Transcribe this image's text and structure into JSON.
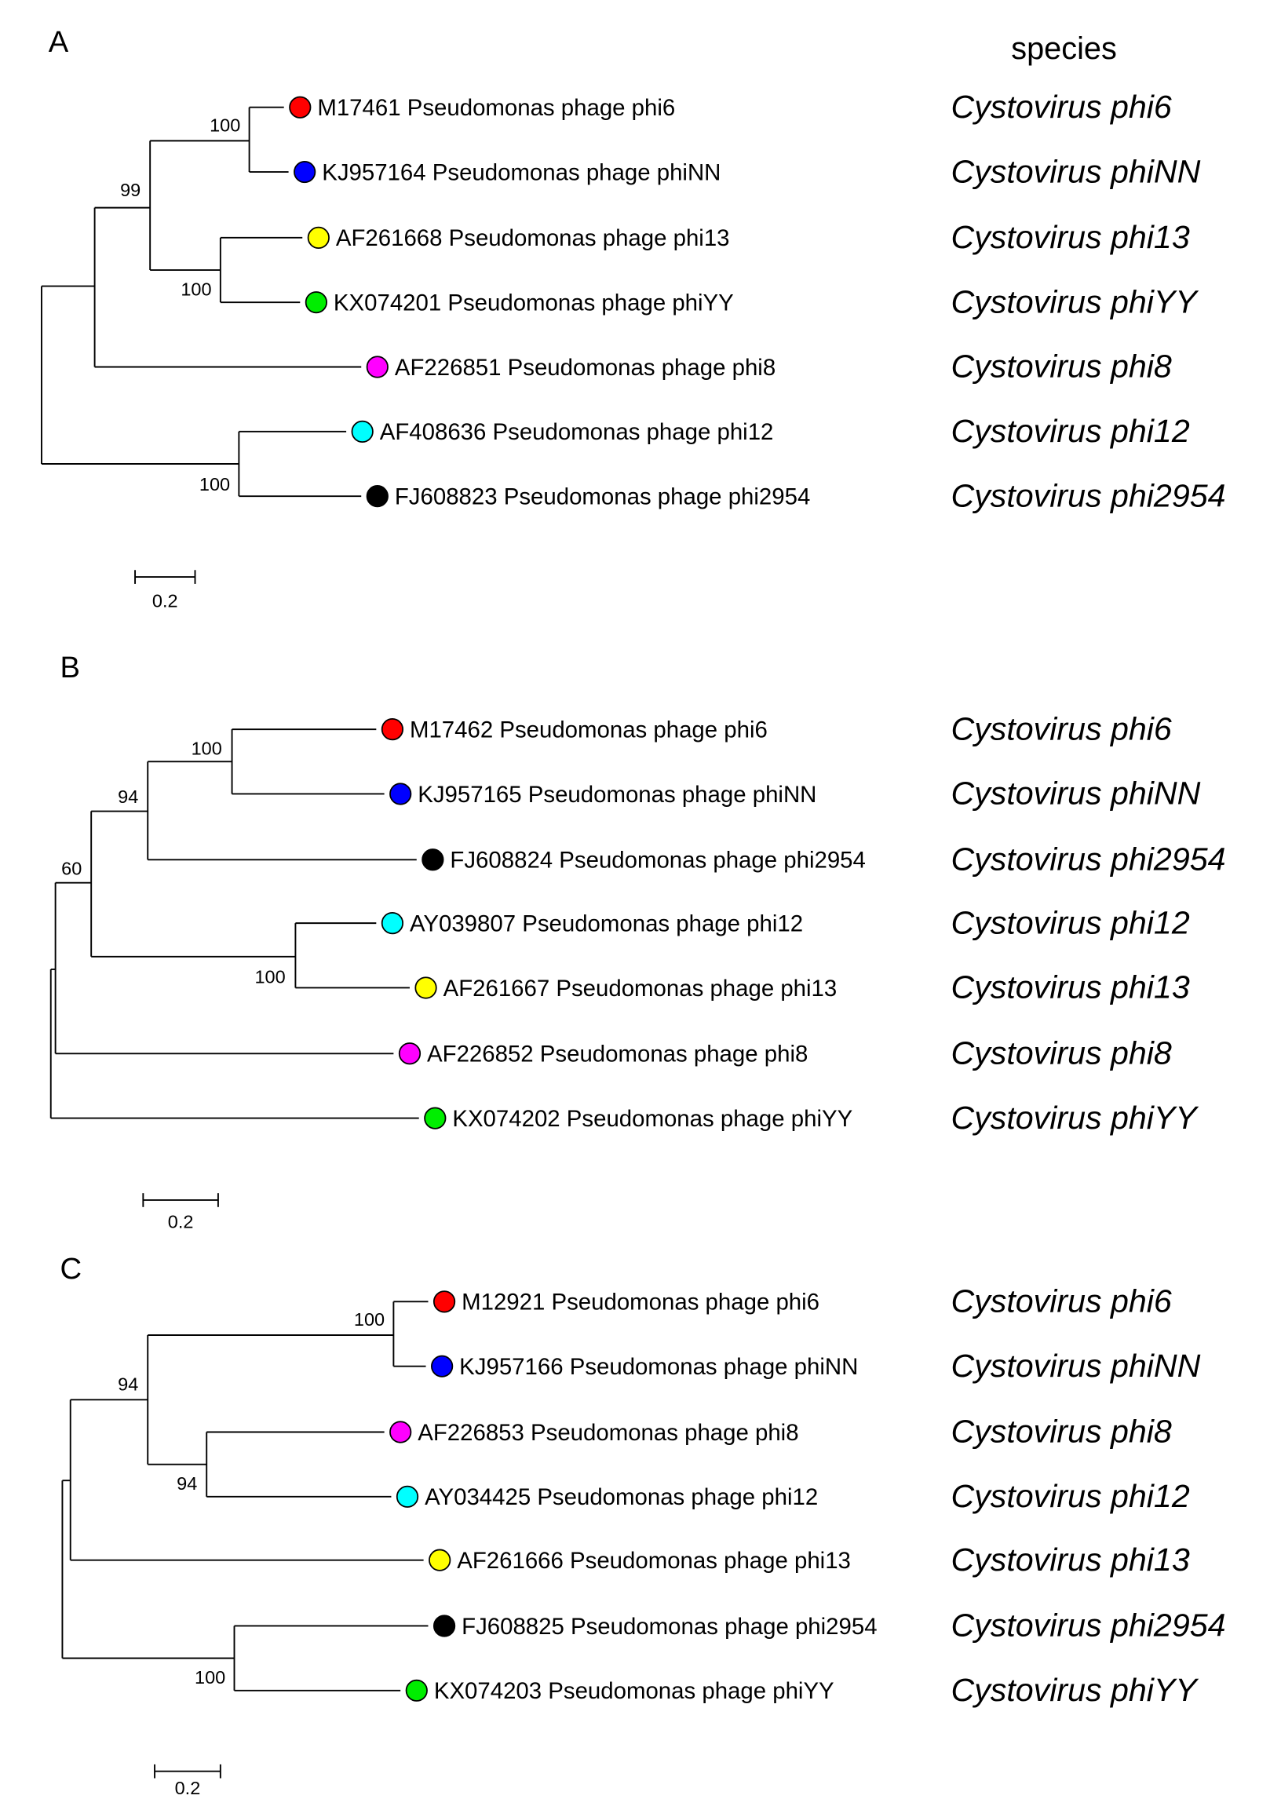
{
  "species_header": "species",
  "panels": [
    {
      "label": "A",
      "scale_label": "0.2",
      "bootstraps": [
        "100",
        "99",
        "100",
        "100"
      ],
      "leaves": [
        {
          "name": "M17461 Pseudomonas phage phi6",
          "species": "Cystovirus phi6",
          "color": "#ff0000"
        },
        {
          "name": "KJ957164 Pseudomonas phage phiNN",
          "species": "Cystovirus phiNN",
          "color": "#0000ff"
        },
        {
          "name": "AF261668 Pseudomonas phage phi13",
          "species": "Cystovirus phi13",
          "color": "#ffff00"
        },
        {
          "name": "KX074201 Pseudomonas phage phiYY",
          "species": "Cystovirus phiYY",
          "color": "#00ee00"
        },
        {
          "name": "AF226851 Pseudomonas phage phi8",
          "species": "Cystovirus phi8",
          "color": "#ff00ff"
        },
        {
          "name": "AF408636 Pseudomonas phage phi12",
          "species": "Cystovirus phi12",
          "color": "#00ffff"
        },
        {
          "name": "FJ608823 Pseudomonas phage phi2954",
          "species": "Cystovirus phi2954",
          "color": "#000000"
        }
      ]
    },
    {
      "label": "B",
      "scale_label": "0.2",
      "bootstraps": [
        "100",
        "94",
        "60",
        "100"
      ],
      "leaves": [
        {
          "name": "M17462 Pseudomonas phage phi6",
          "species": "Cystovirus phi6",
          "color": "#ff0000"
        },
        {
          "name": "KJ957165 Pseudomonas phage phiNN",
          "species": "Cystovirus phiNN",
          "color": "#0000ff"
        },
        {
          "name": "FJ608824 Pseudomonas phage phi2954",
          "species": "Cystovirus phi2954",
          "color": "#000000"
        },
        {
          "name": "AY039807 Pseudomonas phage phi12",
          "species": "Cystovirus phi12",
          "color": "#00ffff"
        },
        {
          "name": "AF261667 Pseudomonas phage phi13",
          "species": "Cystovirus phi13",
          "color": "#ffff00"
        },
        {
          "name": "AF226852 Pseudomonas phage phi8",
          "species": "Cystovirus phi8",
          "color": "#ff00ff"
        },
        {
          "name": "KX074202 Pseudomonas phage phiYY",
          "species": "Cystovirus phiYY",
          "color": "#00ee00"
        }
      ]
    },
    {
      "label": "C",
      "scale_label": "0.2",
      "bootstraps": [
        "100",
        "94",
        "94",
        "100"
      ],
      "leaves": [
        {
          "name": "M12921 Pseudomonas phage phi6",
          "species": "Cystovirus phi6",
          "color": "#ff0000"
        },
        {
          "name": "KJ957166 Pseudomonas phage phiNN",
          "species": "Cystovirus phiNN",
          "color": "#0000ff"
        },
        {
          "name": "AF226853 Pseudomonas phage phi8",
          "species": "Cystovirus phi8",
          "color": "#ff00ff"
        },
        {
          "name": "AY034425 Pseudomonas phage phi12",
          "species": "Cystovirus phi12",
          "color": "#00ffff"
        },
        {
          "name": "AF261666 Pseudomonas phage phi13",
          "species": "Cystovirus phi13",
          "color": "#ffff00"
        },
        {
          "name": "FJ608825 Pseudomonas phage phi2954",
          "species": "Cystovirus phi2954",
          "color": "#000000"
        },
        {
          "name": "KX074203 Pseudomonas phage phiYY",
          "species": "Cystovirus phiYY",
          "color": "#00ee00"
        }
      ]
    }
  ]
}
